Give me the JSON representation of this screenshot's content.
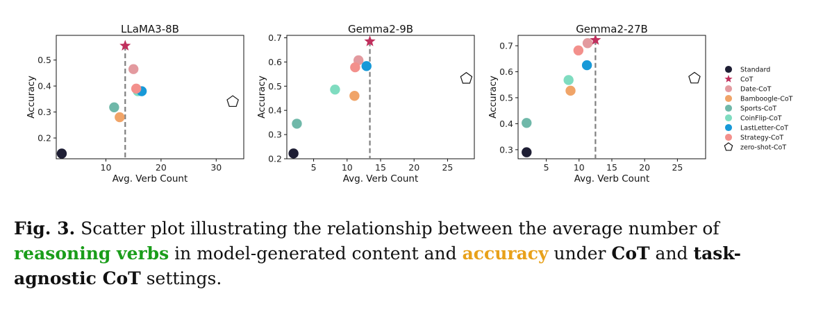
{
  "colors": {
    "Standard": "#1e1e34",
    "CoT": "#c0305d",
    "Date-CoT": "#e39a9f",
    "Bamboogle-CoT": "#f0a468",
    "Sports-CoT": "#6fb8a9",
    "CoinFlip-CoT": "#7fdcc0",
    "LastLetter-CoT": "#1799d8",
    "Strategy-CoT": "#f3908c",
    "zero-shot-CoT": "#ffffff"
  },
  "legend": [
    "Standard",
    "CoT",
    "Date-CoT",
    "Bamboogle-CoT",
    "Sports-CoT",
    "CoinFlip-CoT",
    "LastLetter-CoT",
    "Strategy-CoT",
    "zero-shot-CoT"
  ],
  "chart_data": [
    {
      "type": "scatter",
      "title": "LLaMA3-8B",
      "xlabel": "Avg. Verb Count",
      "ylabel": "Accuracy",
      "xlim": [
        1,
        35
      ],
      "ylim": [
        0.12,
        0.595
      ],
      "xticks": [
        10,
        20,
        30
      ],
      "yticks": [
        0.2,
        0.3,
        0.4,
        0.5
      ],
      "cot_line_x": 13.5,
      "points": [
        {
          "name": "Standard",
          "x": 2,
          "y": 0.14
        },
        {
          "name": "CoT",
          "x": 13.5,
          "y": 0.555
        },
        {
          "name": "Date-CoT",
          "x": 15.0,
          "y": 0.465
        },
        {
          "name": "Bamboogle-CoT",
          "x": 12.5,
          "y": 0.28
        },
        {
          "name": "Sports-CoT",
          "x": 11.5,
          "y": 0.318
        },
        {
          "name": "CoinFlip-CoT",
          "x": 15.8,
          "y": 0.38
        },
        {
          "name": "LastLetter-CoT",
          "x": 16.5,
          "y": 0.38
        },
        {
          "name": "Strategy-CoT",
          "x": 15.5,
          "y": 0.39
        },
        {
          "name": "zero-shot-CoT",
          "x": 33,
          "y": 0.34
        }
      ]
    },
    {
      "type": "scatter",
      "title": "Gemma2-9B",
      "xlabel": "Avg. Verb Count",
      "ylabel": "Accuracy",
      "xlim": [
        1,
        29
      ],
      "ylim": [
        0.2,
        0.71
      ],
      "xticks": [
        5,
        10,
        15,
        20,
        25
      ],
      "yticks": [
        0.2,
        0.3,
        0.4,
        0.5,
        0.6,
        0.7
      ],
      "cot_line_x": 13.4,
      "points": [
        {
          "name": "Standard",
          "x": 2,
          "y": 0.222
        },
        {
          "name": "CoT",
          "x": 13.4,
          "y": 0.685
        },
        {
          "name": "Date-CoT",
          "x": 11.7,
          "y": 0.607
        },
        {
          "name": "Bamboogle-CoT",
          "x": 11.1,
          "y": 0.46
        },
        {
          "name": "Sports-CoT",
          "x": 2.5,
          "y": 0.345
        },
        {
          "name": "CoinFlip-CoT",
          "x": 8.2,
          "y": 0.486
        },
        {
          "name": "LastLetter-CoT",
          "x": 12.9,
          "y": 0.583
        },
        {
          "name": "Strategy-CoT",
          "x": 11.2,
          "y": 0.578
        },
        {
          "name": "zero-shot-CoT",
          "x": 27.8,
          "y": 0.532
        }
      ]
    },
    {
      "type": "scatter",
      "title": "Gemma2-27B",
      "xlabel": "Avg. Verb Count",
      "ylabel": "Accuracy",
      "xlim": [
        0.7,
        29.3
      ],
      "ylim": [
        0.265,
        0.74
      ],
      "xticks": [
        5,
        10,
        15,
        20,
        25
      ],
      "yticks": [
        0.3,
        0.4,
        0.5,
        0.6,
        0.7
      ],
      "cot_line_x": 12.5,
      "points": [
        {
          "name": "Standard",
          "x": 2,
          "y": 0.29
        },
        {
          "name": "CoT",
          "x": 12.5,
          "y": 0.722
        },
        {
          "name": "Date-CoT",
          "x": 11.3,
          "y": 0.71
        },
        {
          "name": "Bamboogle-CoT",
          "x": 8.7,
          "y": 0.527
        },
        {
          "name": "Sports-CoT",
          "x": 2,
          "y": 0.403
        },
        {
          "name": "CoinFlip-CoT",
          "x": 8.4,
          "y": 0.568
        },
        {
          "name": "LastLetter-CoT",
          "x": 11.2,
          "y": 0.625
        },
        {
          "name": "Strategy-CoT",
          "x": 9.9,
          "y": 0.682
        },
        {
          "name": "zero-shot-CoT",
          "x": 27.6,
          "y": 0.575
        }
      ]
    }
  ],
  "caption": {
    "label": "Fig. 3.",
    "part1": " Scatter plot illustrating the relationship between the average number of ",
    "green": "reasoning verbs",
    "part2": " in model-generated content and ",
    "orange": "accuracy",
    "part3": " under ",
    "bold1": "CoT",
    "part4": " and ",
    "bold2": "task-agnostic CoT",
    "part5": " settings."
  }
}
